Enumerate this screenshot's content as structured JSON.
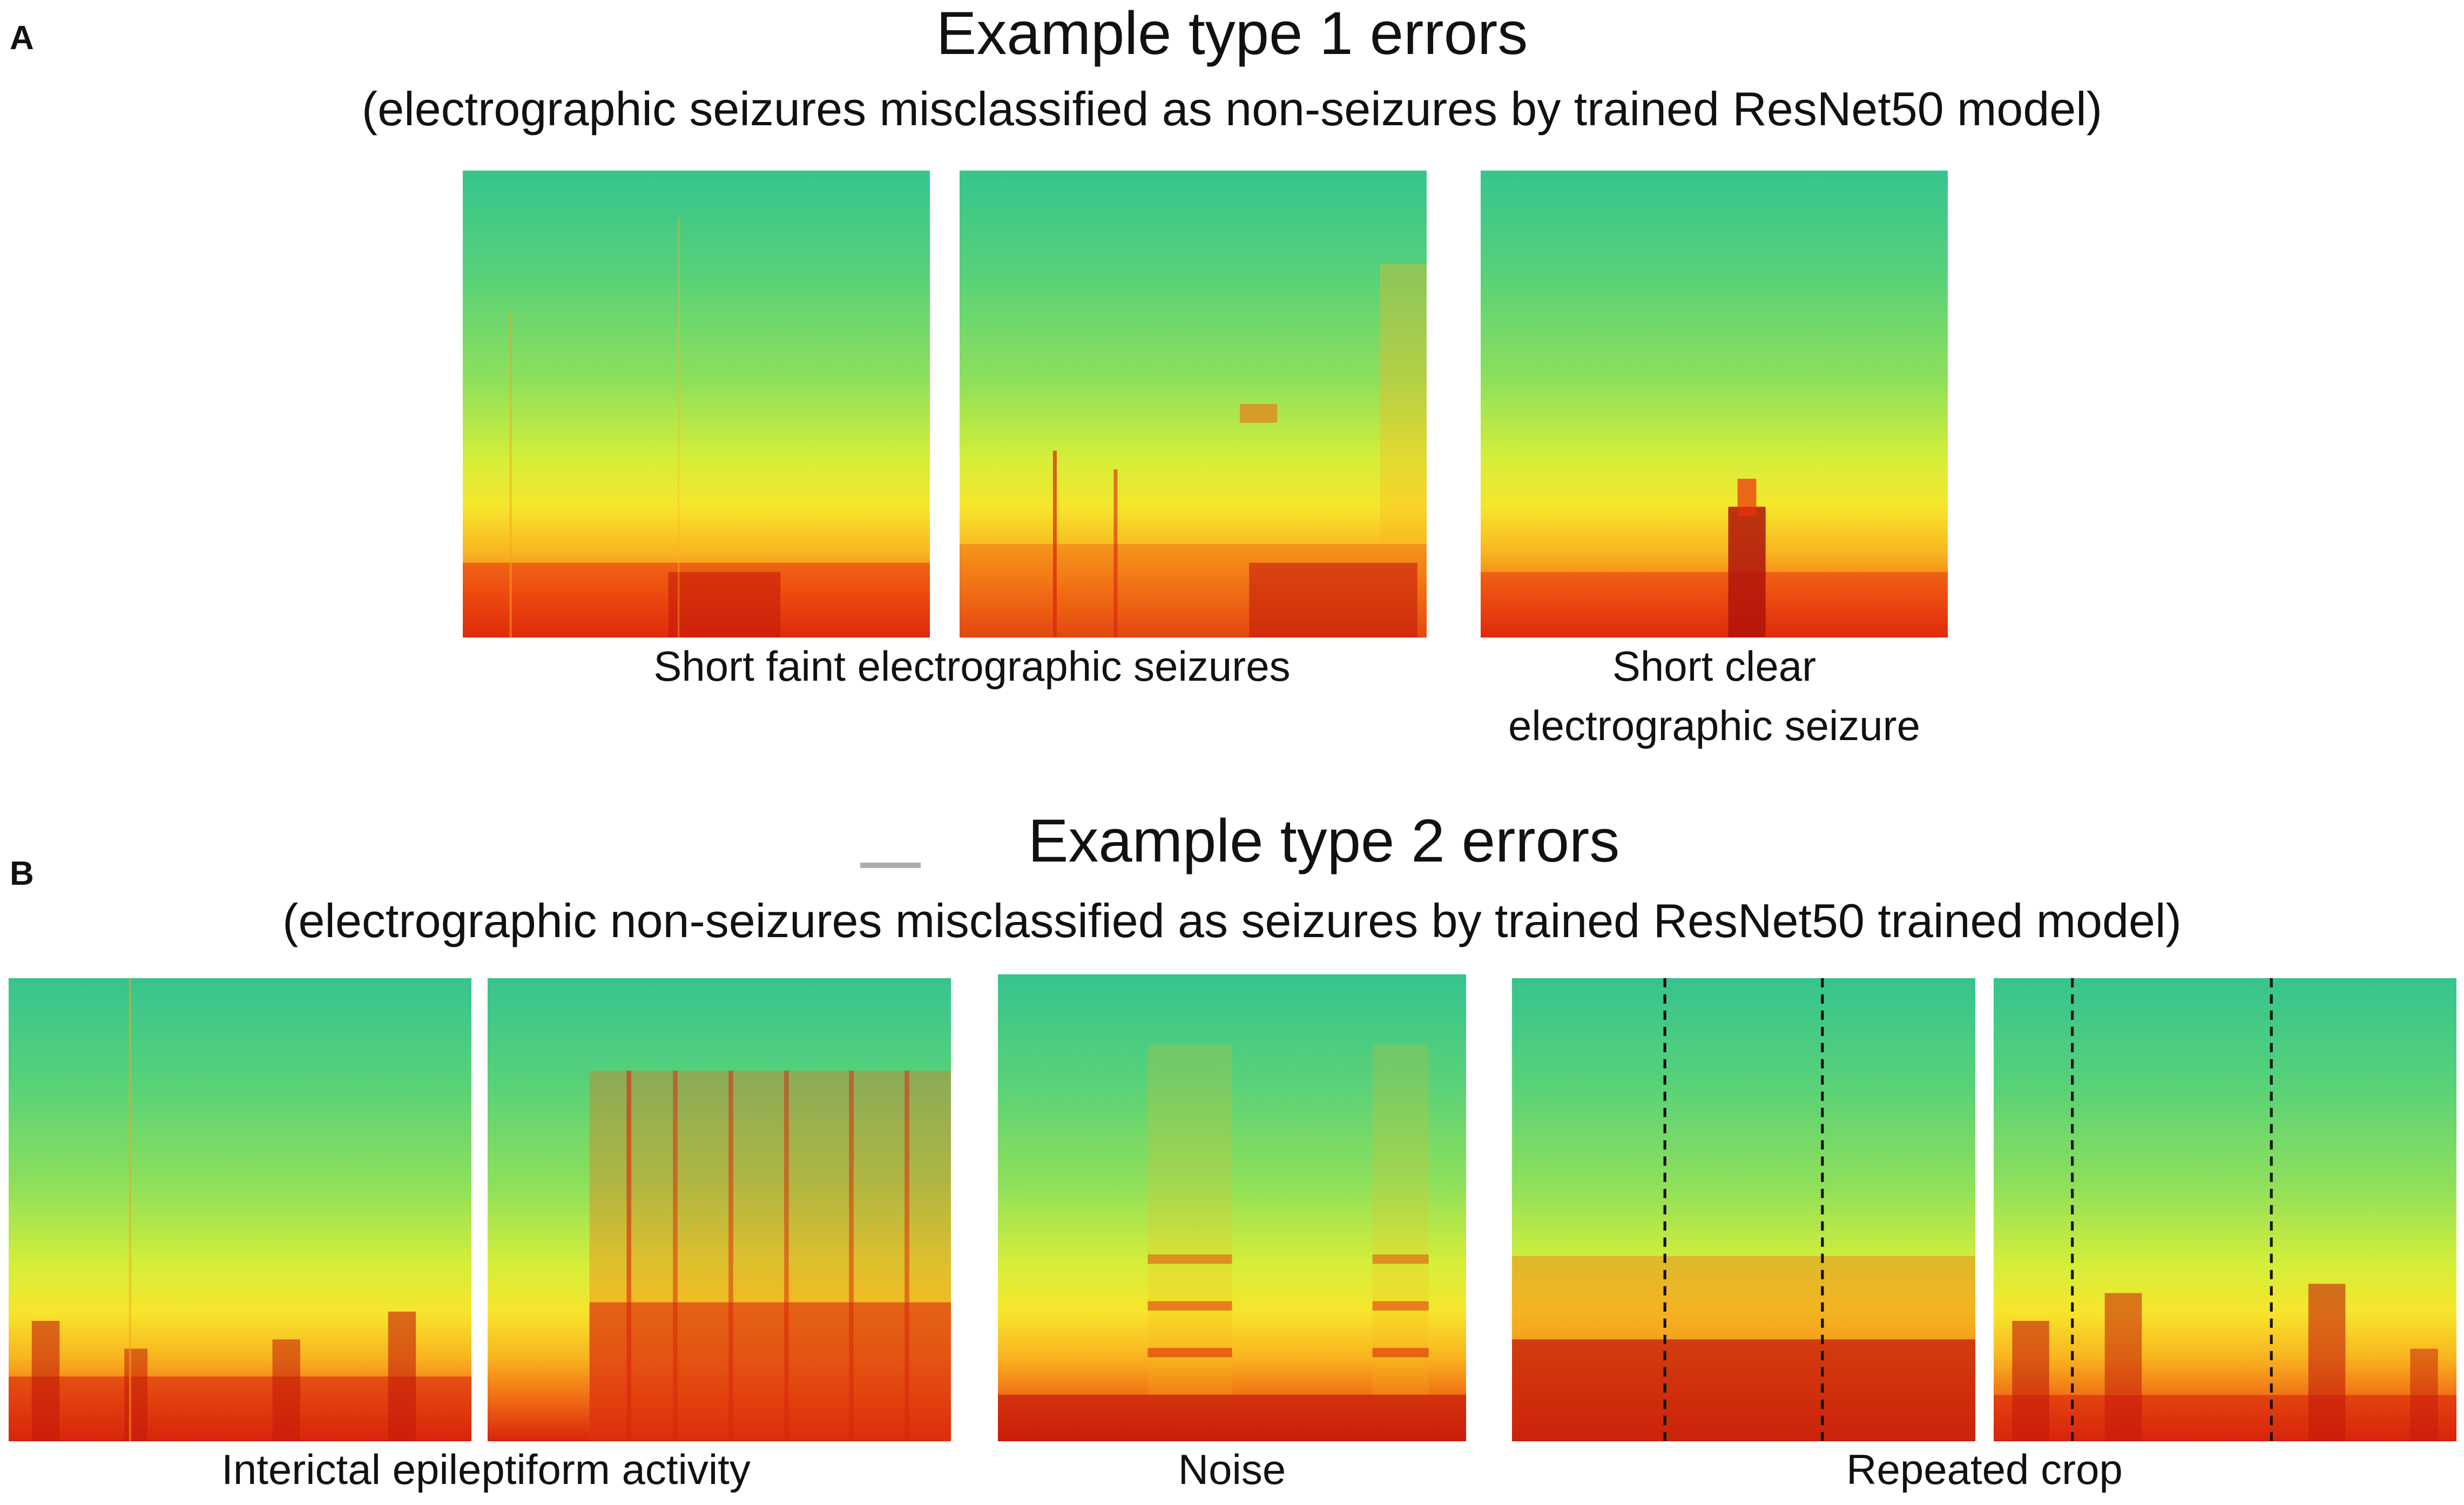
{
  "panel_a": {
    "letter": "A",
    "title": "Example type 1 errors",
    "subtitle": "(electrographic seizures misclassified as non-seizures by trained ResNet50 model)",
    "spectrograms": [
      {
        "id": "a1",
        "description_icon": "spectrogram-icon"
      },
      {
        "id": "a2",
        "description_icon": "spectrogram-icon"
      },
      {
        "id": "a3",
        "description_icon": "spectrogram-icon"
      }
    ],
    "captions": {
      "faint": "Short faint electrographic seizures",
      "clear_line1": "Short clear",
      "clear_line2": "electrographic seizure"
    }
  },
  "panel_b": {
    "letter": "B",
    "title": "Example type 2 errors",
    "subtitle": "(electrographic non-seizures misclassified as seizures by trained ResNet50 trained model)",
    "captions": {
      "interictal": "Interictal  epileptiform activity",
      "noise": "Noise",
      "repeated": "Repeated crop"
    }
  },
  "colormap": {
    "low": "#36c48e",
    "mid": "#f7e62c",
    "high": "#d8240c",
    "dashed_line": "#111111"
  }
}
